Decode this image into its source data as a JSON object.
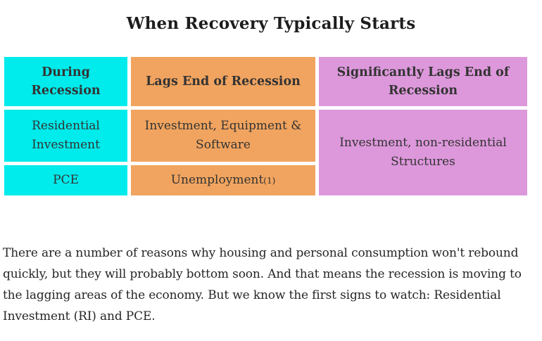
{
  "page": {
    "title": "When Recovery Typically Starts"
  },
  "table": {
    "columns": [
      {
        "header": "During Recession",
        "color": "#00ebeb"
      },
      {
        "header": "Lags End of Recession",
        "color": "#f1a45f"
      },
      {
        "header": "Significantly Lags End of Recession",
        "color": "#dd98db"
      }
    ],
    "body": {
      "residential_investment": "Residential Investment",
      "pce": "PCE",
      "investment_equipment_software": "Investment, Equipment & Software",
      "unemployment": "Unemployment",
      "unemployment_footnote": "(1)",
      "investment_nonresidential_structures": "Investment, non-residential Structures"
    }
  },
  "paragraph": {
    "text": "There are a number of reasons why housing and personal consumption won't rebound quickly, but they will probably bottom soon. And that means the recession is moving to the lagging areas of the economy. But we know the first signs to watch: Residential Investment (RI) and PCE."
  },
  "colors": {
    "cyan": "#00ebeb",
    "orange": "#f1a45f",
    "plum": "#dd98db",
    "table_text": "#333333",
    "title_text": "#1d1d1d",
    "paragraph_text": "#262626"
  }
}
